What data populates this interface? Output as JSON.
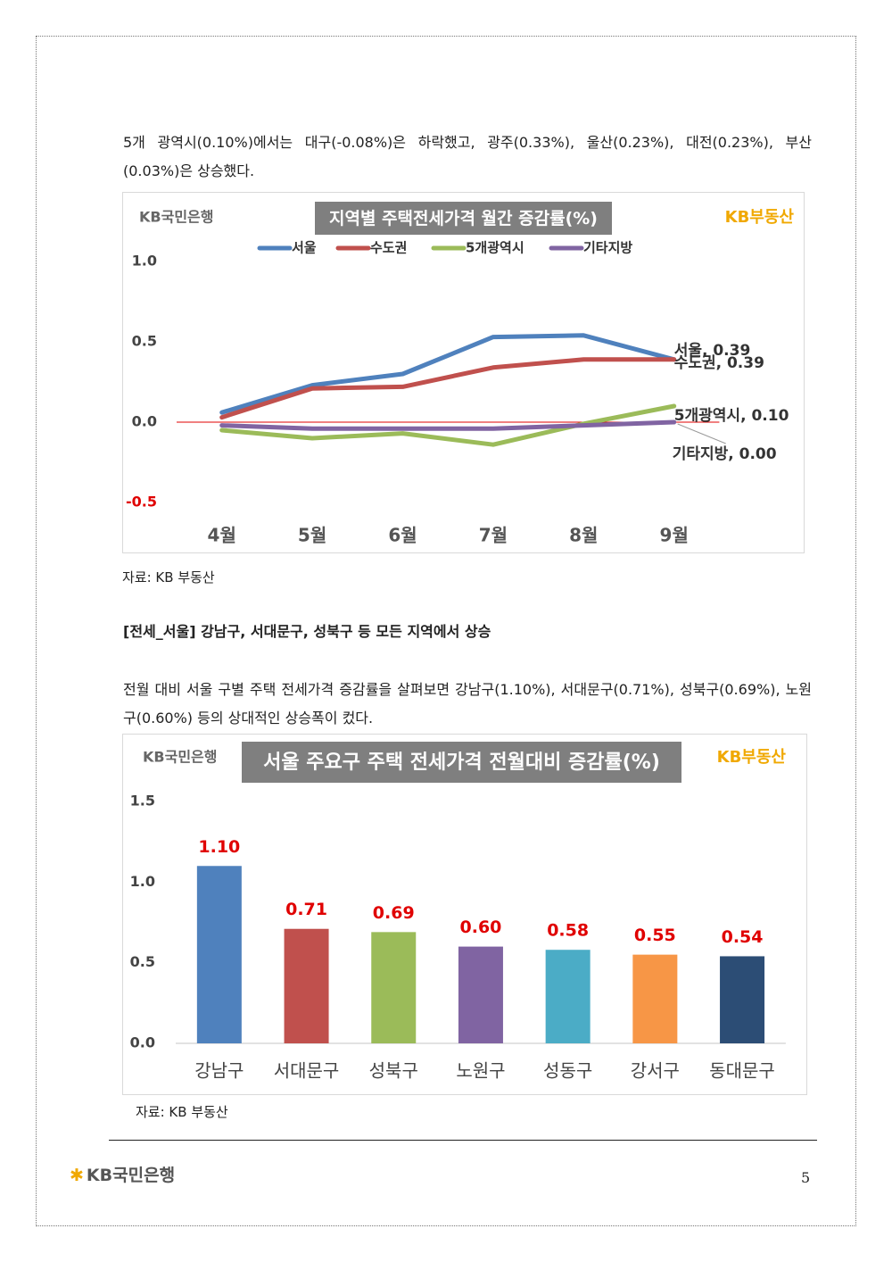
{
  "paragraph_1": "5개 광역시(0.10%)에서는 대구(-0.08%)은 하락했고, 광주(0.33%), 울산(0.23%), 대전(0.23%), 부산(0.03%)은 상승했다.",
  "source_1": "자료: KB 부동산",
  "heading": "[전세_서울] 강남구, 서대문구, 성북구 등 모든 지역에서 상승",
  "paragraph_2": "전월 대비 서울 구별 주택 전세가격 증감률을 살펴보면 강남구(1.10%), 서대문구(0.71%), 성북구(0.69%), 노원구(0.60%) 등의 상대적인 상승폭이 컸다.",
  "source_2": "자료: KB 부동산",
  "footer": {
    "brand": "KB국민은행",
    "page": "5"
  },
  "chart_data": [
    {
      "type": "line",
      "title": "지역별 주택전세가격 월간 증감률(%)",
      "logo_left": "KB국민은행",
      "logo_right": "KB부동산",
      "categories": [
        "4월",
        "5월",
        "6월",
        "7월",
        "8월",
        "9월"
      ],
      "series": [
        {
          "name": "서울",
          "color": "#4f81bd",
          "values": [
            0.06,
            0.23,
            0.3,
            0.53,
            0.54,
            0.39
          ],
          "value_labels": [
            null,
            null,
            null,
            null,
            null,
            "서울, 0.39"
          ]
        },
        {
          "name": "수도권",
          "color": "#c0504d",
          "values": [
            0.03,
            0.21,
            0.22,
            0.34,
            0.39,
            0.39
          ],
          "value_labels": [
            null,
            null,
            null,
            null,
            null,
            "수도권, 0.39"
          ]
        },
        {
          "name": "5개광역시",
          "color": "#9bbb59",
          "values": [
            -0.05,
            -0.1,
            -0.07,
            -0.14,
            -0.01,
            0.1
          ],
          "value_labels": [
            null,
            null,
            null,
            null,
            null,
            "5개광역시, 0.10"
          ]
        },
        {
          "name": "기타지방",
          "color": "#8064a2",
          "values": [
            -0.02,
            -0.04,
            -0.04,
            -0.04,
            -0.02,
            0.0
          ],
          "value_labels": [
            null,
            null,
            null,
            null,
            null,
            "기타지방, 0.00"
          ]
        }
      ],
      "ylim": [
        -0.5,
        1.0
      ],
      "yticks": [
        -0.5,
        {
          "value": 0,
          "label": "0.0"
        },
        0.5,
        {
          "value": 1.0,
          "label": "1.0"
        }
      ],
      "grid": false,
      "zero_line_color": "#e00000",
      "negative_tick_color": "#e00000",
      "legend": "top"
    },
    {
      "type": "bar",
      "title": "서울 주요구 주택 전세가격 전월대비 증감률(%)",
      "logo_left": "KB국민은행",
      "logo_right": "KB부동산",
      "categories": [
        "강남구",
        "서대문구",
        "성북구",
        "노원구",
        "성동구",
        "강서구",
        "동대문구"
      ],
      "values": [
        1.1,
        0.71,
        0.69,
        0.6,
        0.58,
        0.55,
        0.54
      ],
      "value_labels": [
        "1.10",
        "0.71",
        "0.69",
        "0.60",
        "0.58",
        "0.55",
        "0.54"
      ],
      "colors": [
        "#4f81bd",
        "#c0504d",
        "#9bbb59",
        "#8064a2",
        "#4bacc6",
        "#f79646",
        "#2c4d75"
      ],
      "value_label_color": "#e00000",
      "ylim": [
        0,
        1.5
      ],
      "yticks": [
        {
          "value": 0,
          "label": "0.0"
        },
        0.5,
        {
          "value": 1.0,
          "label": "1.0"
        },
        1.5
      ],
      "grid": false
    }
  ]
}
